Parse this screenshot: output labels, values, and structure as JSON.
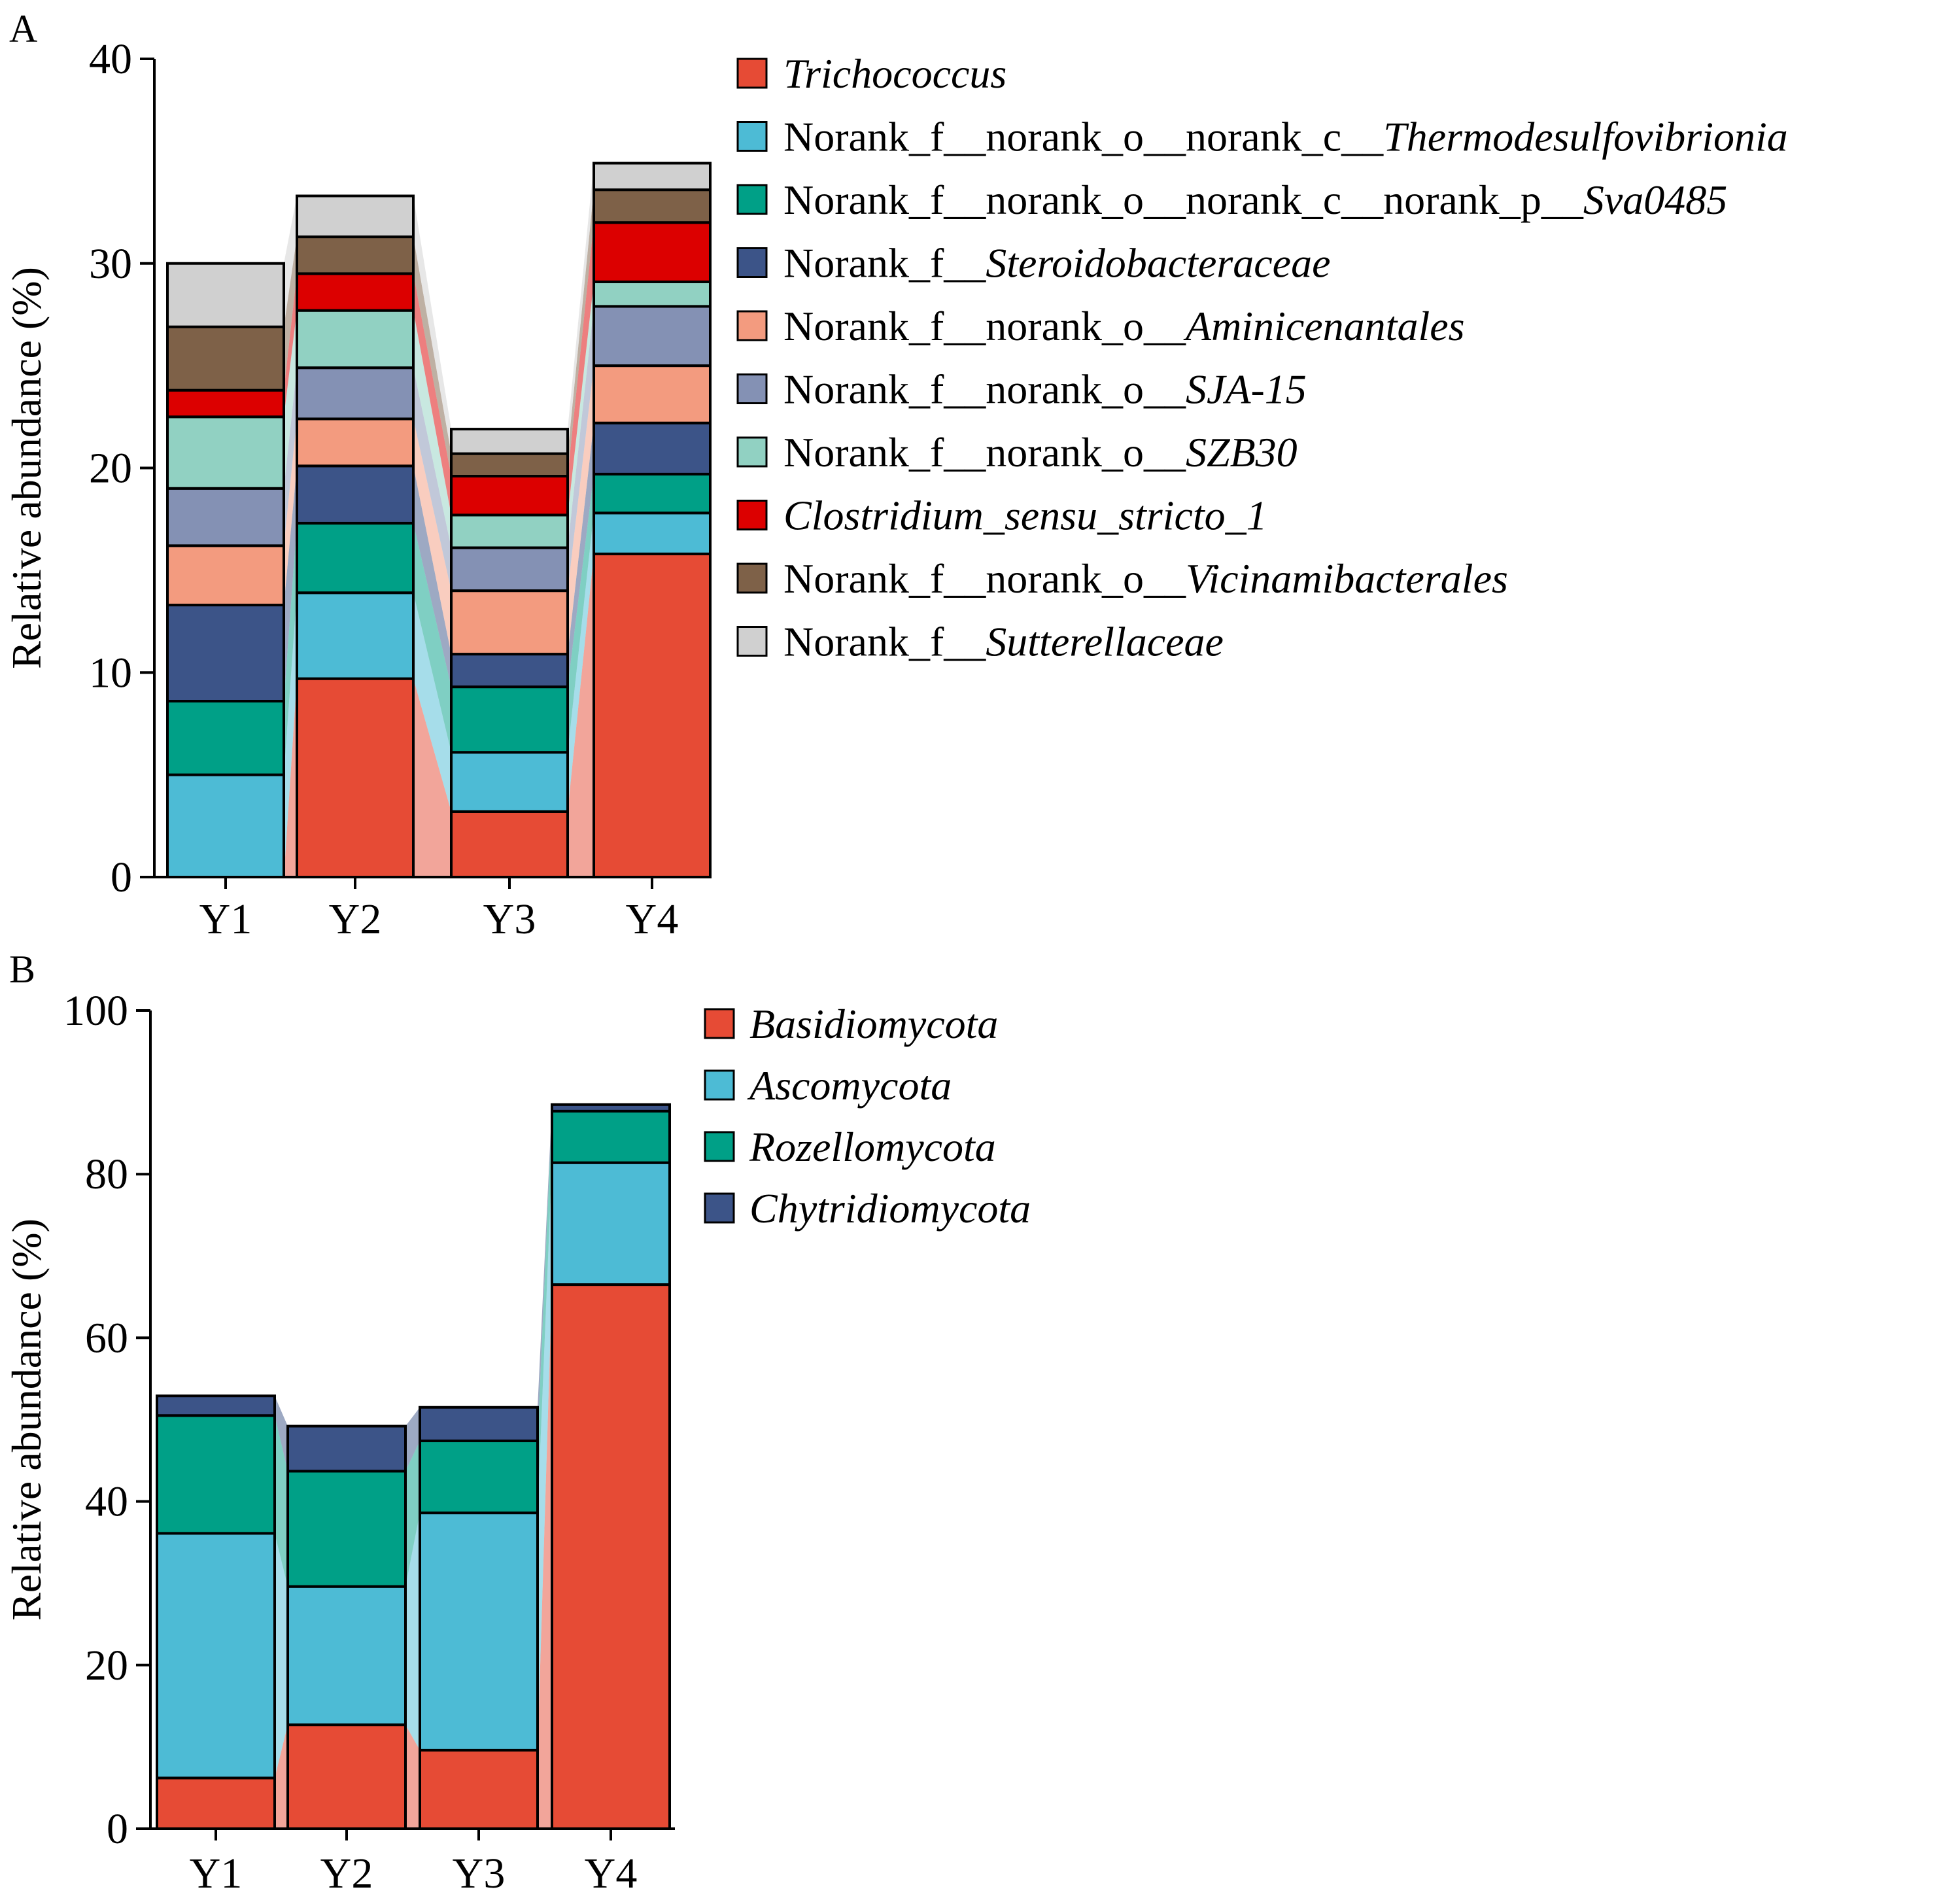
{
  "chart_data": [
    {
      "panel_label": "A",
      "type": "bar",
      "stacked": true,
      "categories": [
        "Y1",
        "Y2",
        "Y3",
        "Y4"
      ],
      "ylabel": "Relative abundance (%)",
      "ylim": [
        0,
        40
      ],
      "yticks": [
        "0",
        "10",
        "20",
        "30",
        "40"
      ],
      "grid": false,
      "legend_position": "right",
      "series": [
        {
          "name": "Trichococcus",
          "legend": [
            {
              "text": "Trichococcus",
              "italic": true
            }
          ],
          "color": "#E64B35",
          "values": [
            0,
            9.7,
            3.2,
            15.8
          ]
        },
        {
          "name": "Norank_f__norank_o__norank_c__Thermodesulfovibrionia",
          "legend": [
            {
              "text": "Norank_f__norank_o__norank_c__",
              "italic": false
            },
            {
              "text": "Thermodesulfovibrionia",
              "italic": true
            }
          ],
          "color": "#4DBBD5",
          "values": [
            5.0,
            4.2,
            2.9,
            2.0
          ]
        },
        {
          "name": "Norank_f__norank_o__norank_c__norank_p__Sva0485",
          "legend": [
            {
              "text": "Norank_f__norank_o__norank_c__norank_p__",
              "italic": false
            },
            {
              "text": "Sva0485",
              "italic": true
            }
          ],
          "color": "#00A087",
          "values": [
            3.6,
            3.4,
            3.2,
            1.9
          ]
        },
        {
          "name": "Norank_f__Steroidobacteraceae",
          "legend": [
            {
              "text": "Norank_f__",
              "italic": false
            },
            {
              "text": "Steroidobacteraceae",
              "italic": true
            }
          ],
          "color": "#3C5488",
          "values": [
            4.7,
            2.8,
            1.6,
            2.5
          ]
        },
        {
          "name": "Norank_f__norank_o__Aminicenantales",
          "legend": [
            {
              "text": "Norank_f__norank_o__",
              "italic": false
            },
            {
              "text": "Aminicenantales",
              "italic": true
            }
          ],
          "color": "#F39B7F",
          "values": [
            2.9,
            2.3,
            3.1,
            2.8
          ]
        },
        {
          "name": "Norank_f__norank_o__SJA-15",
          "legend": [
            {
              "text": "Norank_f__norank_o__",
              "italic": false
            },
            {
              "text": "SJA-15",
              "italic": true
            }
          ],
          "color": "#8491B4",
          "values": [
            2.8,
            2.5,
            2.1,
            2.9
          ]
        },
        {
          "name": "Norank_f__norank_o__SZB30",
          "legend": [
            {
              "text": "Norank_f__norank_o__",
              "italic": false
            },
            {
              "text": "SZB30",
              "italic": true
            }
          ],
          "color": "#91D1C2",
          "values": [
            3.5,
            2.8,
            1.6,
            1.2
          ]
        },
        {
          "name": "Clostridium_sensu_stricto_1",
          "legend": [
            {
              "text": "Clostridium_sensu_stricto_1",
              "italic": true
            }
          ],
          "color": "#DC0000",
          "values": [
            1.3,
            1.8,
            1.9,
            2.9
          ]
        },
        {
          "name": "Norank_f__norank_o__Vicinamibacterales",
          "legend": [
            {
              "text": "Norank_f__norank_o__",
              "italic": false
            },
            {
              "text": "Vicinamibacterales",
              "italic": true
            }
          ],
          "color": "#7E6148",
          "values": [
            3.1,
            1.8,
            1.1,
            1.6
          ]
        },
        {
          "name": "Norank_f__Sutterellaceae",
          "legend": [
            {
              "text": "Norank_f__",
              "italic": false
            },
            {
              "text": "Sutterellaceae",
              "italic": true
            }
          ],
          "color": "#D0D0D0",
          "values": [
            3.1,
            2.0,
            1.2,
            1.3
          ]
        }
      ]
    },
    {
      "panel_label": "B",
      "type": "bar",
      "stacked": true,
      "categories": [
        "Y1",
        "Y2",
        "Y3",
        "Y4"
      ],
      "ylabel": "Relative abundance (%)",
      "ylim": [
        0,
        100
      ],
      "yticks": [
        "0",
        "20",
        "40",
        "60",
        "80",
        "100"
      ],
      "grid": false,
      "legend_position": "right",
      "series": [
        {
          "name": "Basidiomycota",
          "legend": [
            {
              "text": "Basidiomycota",
              "italic": true
            }
          ],
          "color": "#E64B35",
          "values": [
            6.2,
            12.7,
            9.6,
            66.5
          ]
        },
        {
          "name": "Ascomycota",
          "legend": [
            {
              "text": "Ascomycota",
              "italic": true
            }
          ],
          "color": "#4DBBD5",
          "values": [
            29.9,
            16.9,
            29.0,
            14.9
          ]
        },
        {
          "name": "Rozellomycota",
          "legend": [
            {
              "text": "Rozellomycota",
              "italic": true
            }
          ],
          "color": "#00A087",
          "values": [
            14.4,
            14.1,
            8.8,
            6.3
          ]
        },
        {
          "name": "Chytridiomycota",
          "legend": [
            {
              "text": "Chytridiomycota",
              "italic": true
            }
          ],
          "color": "#3C5488",
          "values": [
            2.4,
            5.5,
            4.1,
            0.8
          ]
        }
      ]
    }
  ]
}
